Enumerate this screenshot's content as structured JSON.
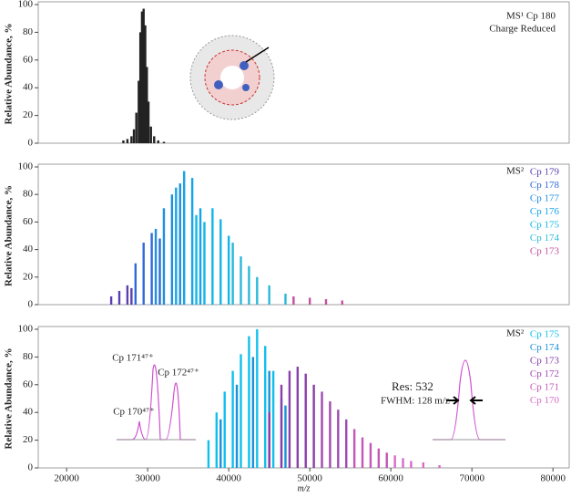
{
  "chart_data": [
    {
      "type": "bar",
      "y_label": "Relative Abundance, %",
      "ylim": [
        0,
        100
      ],
      "yticks": [
        0,
        20,
        40,
        60,
        80,
        100
      ],
      "xlim": [
        16500,
        82000
      ],
      "annotations": [
        "MS¹ Cp 180",
        "Charge Reduced"
      ],
      "series": [
        {
          "name": null,
          "color": "#222222",
          "x": [
            27000,
            27500,
            28000,
            28300,
            28600,
            28900,
            29100,
            29300,
            29500,
            29700,
            29900,
            30100,
            30400,
            30800,
            31300,
            32000
          ],
          "values": [
            2,
            3,
            5,
            10,
            22,
            45,
            80,
            95,
            97,
            85,
            55,
            30,
            12,
            5,
            2,
            1
          ]
        }
      ]
    },
    {
      "type": "bar",
      "y_label": "Relative Abundance, %",
      "ylim": [
        0,
        100
      ],
      "yticks": [
        0,
        20,
        40,
        60,
        80,
        100
      ],
      "xlim": [
        16500,
        82000
      ],
      "annotations": [
        "MS²"
      ],
      "series": [
        {
          "name": "Cp 179",
          "color": "#5b3fb0",
          "x": [
            25500,
            26500,
            27500,
            28000
          ],
          "values": [
            6,
            10,
            14,
            12
          ]
        },
        {
          "name": "Cp 178",
          "color": "#2f6ad9",
          "x": [
            28500,
            29500,
            30500,
            31500
          ],
          "values": [
            30,
            45,
            52,
            48
          ]
        },
        {
          "name": "Cp 177",
          "color": "#1d8fe0",
          "x": [
            31000,
            32000,
            33000,
            34000
          ],
          "values": [
            55,
            70,
            80,
            88
          ]
        },
        {
          "name": "Cp 176",
          "color": "#15a4e8",
          "x": [
            33500,
            34500,
            35500,
            36500
          ],
          "values": [
            85,
            97,
            92,
            70
          ]
        },
        {
          "name": "Cp 175",
          "color": "#12b6e8",
          "x": [
            36000,
            37000,
            38000,
            39000,
            40000
          ],
          "values": [
            65,
            60,
            70,
            62,
            50
          ]
        },
        {
          "name": "Cp 174",
          "color": "#2bb8d8",
          "x": [
            40500,
            41500,
            42500,
            43500,
            45000,
            47000
          ],
          "values": [
            45,
            35,
            28,
            20,
            14,
            8
          ]
        },
        {
          "name": "Cp 173",
          "color": "#c2519f",
          "x": [
            48000,
            50000,
            52000,
            54000
          ],
          "values": [
            6,
            5,
            4,
            3
          ]
        }
      ]
    },
    {
      "type": "bar",
      "y_label": "Relative Abundance, %",
      "x_label": "m/z",
      "ylim": [
        0,
        100
      ],
      "yticks": [
        0,
        20,
        40,
        60,
        80,
        100
      ],
      "xlim": [
        16500,
        82000
      ],
      "xticks": [
        20000,
        30000,
        40000,
        50000,
        60000,
        70000,
        80000
      ],
      "annotations": [
        "MS²",
        "Res: 532",
        "FWHM: 128 m/z",
        "Cp 171⁴⁷⁺",
        "Cp 172⁴⁷⁺",
        "Cp 170⁴⁷⁺"
      ],
      "series": [
        {
          "name": "Cp 175",
          "color": "#10c0ec",
          "x": [
            37500,
            38500,
            39500,
            40500,
            41500,
            42500,
            43500,
            44500,
            45500,
            46500
          ],
          "values": [
            20,
            40,
            55,
            70,
            82,
            95,
            100,
            88,
            70,
            50
          ]
        },
        {
          "name": "Cp 174",
          "color": "#1b8fd8",
          "x": [
            39000,
            41000,
            43000,
            45000,
            47000
          ],
          "values": [
            35,
            60,
            80,
            70,
            45
          ]
        },
        {
          "name": "Cp 173",
          "color": "#8a3fa8",
          "x": [
            45000,
            46500,
            47500,
            48500,
            49500,
            50500
          ],
          "values": [
            40,
            60,
            70,
            73,
            68,
            60
          ]
        },
        {
          "name": "Cp 172",
          "color": "#a04ab0",
          "x": [
            51500,
            52500,
            53500,
            54500
          ],
          "values": [
            55,
            48,
            42,
            35
          ]
        },
        {
          "name": "Cp 171",
          "color": "#c257b8",
          "x": [
            55500,
            56500,
            57500,
            58500,
            59500
          ],
          "values": [
            28,
            22,
            18,
            14,
            11
          ]
        },
        {
          "name": "Cp 170",
          "color": "#d86ac8",
          "x": [
            60500,
            61500,
            62500,
            64000,
            66000
          ],
          "values": [
            9,
            7,
            5,
            4,
            2
          ]
        }
      ]
    }
  ]
}
